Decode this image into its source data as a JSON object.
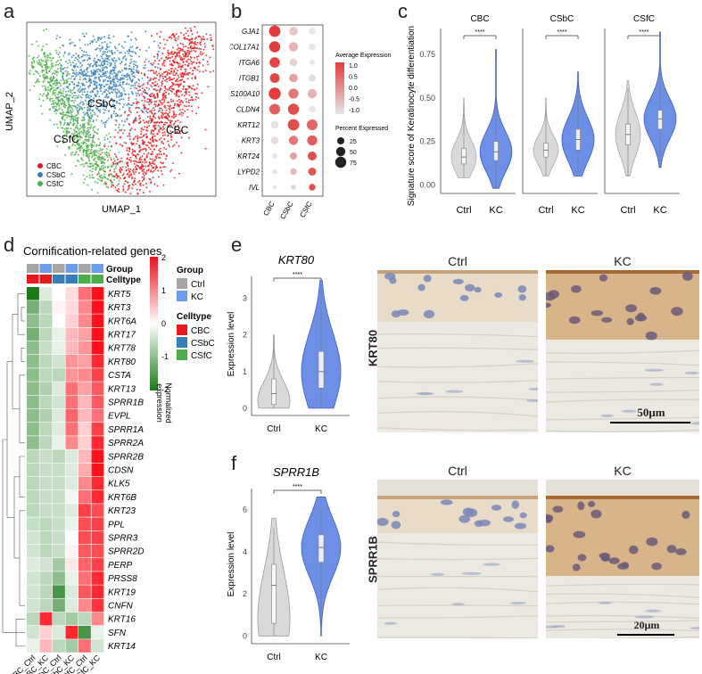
{
  "panel_labels": [
    "a",
    "b",
    "c",
    "d",
    "e",
    "f"
  ],
  "chart_data": [
    {
      "type": "scatter",
      "id": "umap",
      "xlabel": "UMAP_1",
      "ylabel": "UMAP_2",
      "clusters": [
        {
          "name": "CBC",
          "color": "#e41a1c"
        },
        {
          "name": "CSbC",
          "color": "#377eb8"
        },
        {
          "name": "CSfC",
          "color": "#4daf4a"
        }
      ],
      "legend": [
        "CBC",
        "CSbC",
        "CSfC"
      ],
      "legend_position": "bottom-left"
    },
    {
      "type": "dot",
      "id": "dotplot",
      "genes": [
        "GJA1",
        "COL17A1",
        "ITGA6",
        "ITGB1",
        "S100A10",
        "CLDN4",
        "KRT12",
        "KRT3",
        "KRT24",
        "LYPD2",
        "IVL"
      ],
      "groups": [
        "CBC",
        "CSbC",
        "CSfC"
      ],
      "avg_expression": [
        [
          1.0,
          -0.6,
          -1.0
        ],
        [
          1.0,
          -0.4,
          -1.0
        ],
        [
          0.9,
          -0.8,
          -1.0
        ],
        [
          0.9,
          -0.2,
          -0.9
        ],
        [
          1.0,
          0.3,
          -0.4
        ],
        [
          0.6,
          0.8,
          -1.0
        ],
        [
          -1.0,
          0.8,
          0.5
        ],
        [
          -0.9,
          0.3,
          0.6
        ],
        [
          -1.0,
          -0.2,
          0.8
        ],
        [
          -1.0,
          -0.5,
          0.7
        ],
        [
          -1.0,
          -0.8,
          0.8
        ]
      ],
      "pct_expressed": [
        [
          80,
          40,
          20
        ],
        [
          75,
          50,
          20
        ],
        [
          65,
          30,
          10
        ],
        [
          55,
          40,
          25
        ],
        [
          90,
          60,
          50
        ],
        [
          70,
          75,
          20
        ],
        [
          35,
          80,
          70
        ],
        [
          30,
          50,
          60
        ],
        [
          10,
          25,
          45
        ],
        [
          10,
          20,
          35
        ],
        [
          5,
          10,
          20
        ]
      ],
      "colorbar_title": "Average Expression",
      "colorbar_ticks": [
        "1.0",
        "0.5",
        "0.0",
        "-0.5",
        "-1.0"
      ],
      "size_title": "Percent Expressed",
      "size_ticks": [
        "25",
        "50",
        "75"
      ]
    },
    {
      "type": "violin",
      "id": "signature",
      "ylabel": "Signature score of Keratinocyte differentiation",
      "ylim": [
        -0.05,
        0.9
      ],
      "yticks": [
        "0.00",
        "0.25",
        "0.50",
        "0.75"
      ],
      "facets": [
        {
          "title": "CBC",
          "sig": "****",
          "ctrl": {
            "median": 0.16,
            "q1": 0.12,
            "q3": 0.21,
            "min": 0.04,
            "max": 0.5
          },
          "kc": {
            "median": 0.19,
            "q1": 0.14,
            "q3": 0.25,
            "min": -0.02,
            "max": 0.78
          }
        },
        {
          "title": "CSbC",
          "sig": "****",
          "ctrl": {
            "median": 0.2,
            "q1": 0.16,
            "q3": 0.24,
            "min": 0.05,
            "max": 0.5
          },
          "kc": {
            "median": 0.26,
            "q1": 0.2,
            "q3": 0.32,
            "min": 0.05,
            "max": 0.65
          }
        },
        {
          "title": "CSfC",
          "sig": "****",
          "ctrl": {
            "median": 0.29,
            "q1": 0.23,
            "q3": 0.35,
            "min": 0.05,
            "max": 0.6
          },
          "kc": {
            "median": 0.38,
            "q1": 0.32,
            "q3": 0.43,
            "min": 0.1,
            "max": 0.88
          }
        }
      ],
      "xticks": [
        "Ctrl",
        "KC"
      ]
    },
    {
      "type": "heatmap",
      "id": "cornification",
      "title": "Cornification-related genes",
      "columns": [
        "CBC_Ctrl",
        "CBC_KC",
        "CSbC_Ctrl",
        "CSbC_KC",
        "CSfC_Ctrl",
        "CSfC_KC"
      ],
      "group_row": [
        "Ctrl",
        "KC",
        "Ctrl",
        "KC",
        "Ctrl",
        "KC"
      ],
      "celltype_row": [
        "CBC",
        "CBC",
        "CSbC",
        "CSbC",
        "CSfC",
        "CSfC"
      ],
      "annotation_labels": [
        "Group",
        "Celltype"
      ],
      "rows": [
        "KRT5",
        "KRT3",
        "KRT6A",
        "KRT17",
        "KRT78",
        "KRT80",
        "CSTA",
        "KRT13",
        "SPRR1B",
        "EVPL",
        "SPRR1A",
        "SPRR2A",
        "SPRR2B",
        "CDSN",
        "KLK5",
        "KRT6B",
        "KRT23",
        "PPL",
        "SPRR3",
        "SPRR2D",
        "PERP",
        "PRSS8",
        "KRT19",
        "CNFN",
        "KRT16",
        "SFN",
        "KRT14"
      ],
      "values": [
        [
          -2.0,
          -0.3,
          0.0,
          0.3,
          1.2,
          2.0
        ],
        [
          -1.2,
          -0.6,
          0.1,
          0.3,
          1.0,
          2.0
        ],
        [
          -1.0,
          -0.6,
          0.0,
          0.4,
          1.0,
          2.0
        ],
        [
          -1.2,
          -0.6,
          -0.2,
          0.6,
          0.8,
          2.0
        ],
        [
          -1.0,
          -0.5,
          -0.2,
          0.6,
          0.9,
          2.0
        ],
        [
          -1.0,
          -0.6,
          -0.4,
          0.9,
          0.8,
          1.8
        ],
        [
          -1.0,
          -0.6,
          -0.6,
          0.9,
          1.0,
          1.6
        ],
        [
          -1.0,
          -0.7,
          -0.3,
          1.2,
          0.8,
          1.4
        ],
        [
          -1.0,
          -0.6,
          -0.4,
          1.2,
          0.6,
          1.4
        ],
        [
          -1.0,
          -0.7,
          -0.3,
          1.3,
          0.6,
          1.2
        ],
        [
          -1.0,
          -0.6,
          -0.3,
          1.2,
          0.4,
          1.6
        ],
        [
          -1.0,
          -0.6,
          -0.2,
          1.0,
          0.4,
          1.8
        ],
        [
          -0.6,
          -0.5,
          -0.6,
          -0.3,
          0.6,
          2.0
        ],
        [
          -0.6,
          -0.5,
          -0.5,
          -0.3,
          0.7,
          2.0
        ],
        [
          -0.6,
          -0.5,
          -0.5,
          -0.3,
          1.0,
          1.8
        ],
        [
          -0.6,
          -0.5,
          -0.5,
          -0.1,
          1.2,
          1.8
        ],
        [
          -0.6,
          -0.5,
          -0.5,
          -0.3,
          1.6,
          1.5
        ],
        [
          -0.5,
          -0.6,
          -0.5,
          -0.2,
          1.5,
          1.6
        ],
        [
          -0.4,
          -0.6,
          -0.5,
          0.0,
          1.5,
          1.6
        ],
        [
          -0.4,
          -0.6,
          -0.5,
          0.1,
          1.4,
          1.5
        ],
        [
          -0.3,
          -0.4,
          -0.8,
          0.2,
          1.3,
          1.6
        ],
        [
          -0.4,
          -0.6,
          -1.0,
          -0.2,
          1.2,
          1.8
        ],
        [
          -0.4,
          -0.6,
          -1.6,
          -0.3,
          1.4,
          1.8
        ],
        [
          -0.4,
          -0.6,
          -1.2,
          -0.3,
          1.0,
          1.7
        ],
        [
          -0.6,
          1.8,
          -0.6,
          -0.8,
          -0.6,
          1.0
        ],
        [
          -0.4,
          0.4,
          -0.3,
          1.8,
          -1.6,
          -0.2
        ],
        [
          -0.2,
          0.6,
          -0.6,
          -0.8,
          1.2,
          -0.4
        ]
      ],
      "colorbar_ticks": [
        "2",
        "1",
        "0",
        "-1",
        "-2"
      ],
      "colorbar_title": "Normalized expression",
      "legend_group_title": "Group",
      "legend_group_items": [
        {
          "name": "Ctrl",
          "color": "#a6a6a6"
        },
        {
          "name": "KC",
          "color": "#6d9eeb"
        }
      ],
      "legend_celltype_title": "Celltype",
      "legend_celltype_items": [
        {
          "name": "CBC",
          "color": "#e41a1c"
        },
        {
          "name": "CSbC",
          "color": "#377eb8"
        },
        {
          "name": "CSfC",
          "color": "#4daf4a"
        }
      ],
      "xtick_labels": [
        "CBC_Ctrl",
        "CBC_KC",
        "CSbC_Ctrl",
        "CSbC_KC",
        "CSfC_Ctrl",
        "CSfC_KC"
      ]
    },
    {
      "type": "violin",
      "id": "krt80",
      "title": "KRT80",
      "ylabel": "Expression level",
      "ylim": [
        -0.1,
        3.6
      ],
      "yticks": [
        "0",
        "1",
        "2",
        "3"
      ],
      "xticks": [
        "Ctrl",
        "KC"
      ],
      "sig": "****",
      "ctrl": {
        "median": 0.4,
        "q1": 0.1,
        "q3": 0.8,
        "min": 0,
        "max": 2.0
      },
      "kc": {
        "median": 1.0,
        "q1": 0.55,
        "q3": 1.55,
        "min": 0,
        "max": 3.5
      }
    },
    {
      "type": "violin",
      "id": "sprr1b",
      "title": "SPRR1B",
      "ylabel": "Expression level",
      "ylim": [
        -0.2,
        7
      ],
      "yticks": [
        "0",
        "2",
        "4",
        "6"
      ],
      "xticks": [
        "Ctrl",
        "KC"
      ],
      "sig": "****",
      "ctrl": {
        "median": 2.4,
        "q1": 0.6,
        "q3": 3.4,
        "min": 0,
        "max": 5.6
      },
      "kc": {
        "median": 4.2,
        "q1": 3.5,
        "q3": 4.8,
        "min": 0,
        "max": 6.6
      }
    }
  ],
  "micrographs": {
    "e_ctrl": "Ctrl",
    "e_kc": "KC",
    "e_side": "KRT80",
    "e_scale": "50μm",
    "f_ctrl": "Ctrl",
    "f_kc": "KC",
    "f_side": "SPRR1B",
    "f_scale": "20μm"
  },
  "colors": {
    "ctrl_violin": "#d9d9d9",
    "kc_violin": "#6d8fe6",
    "heat_high": "#e8111b",
    "heat_mid": "#ffffff",
    "heat_low": "#1a7a1a"
  }
}
